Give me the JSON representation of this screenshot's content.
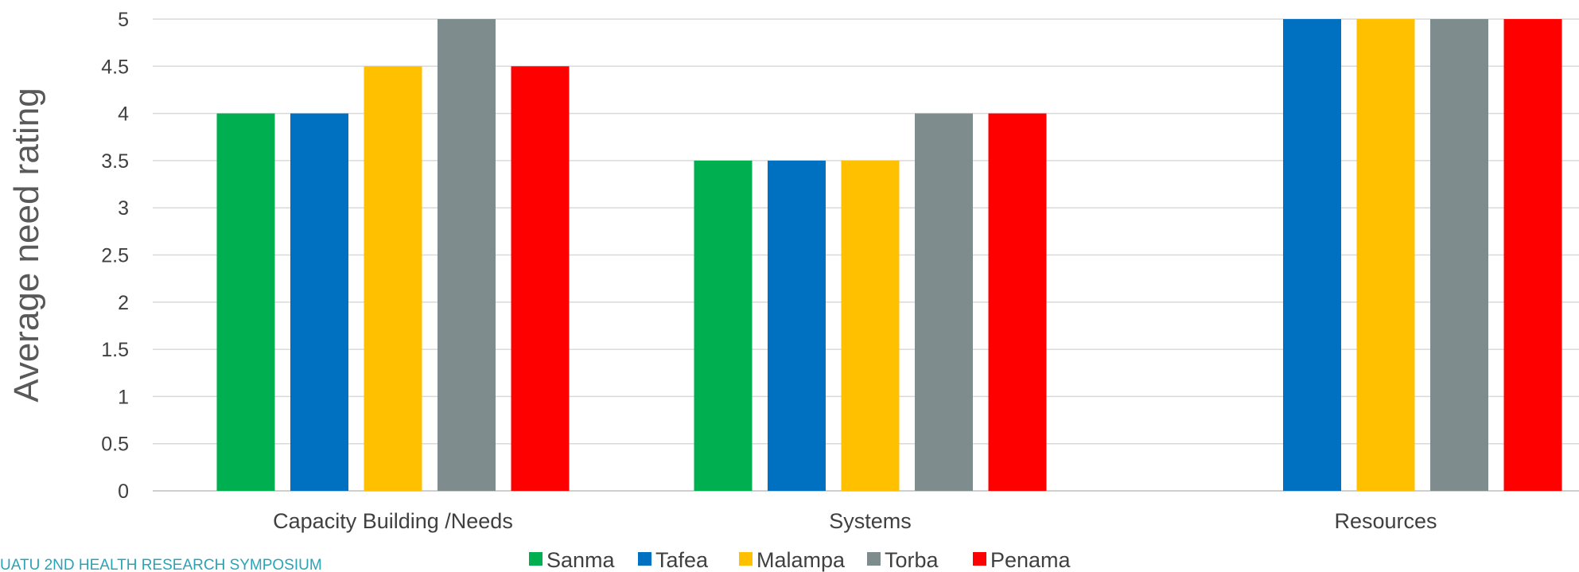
{
  "chart_data": {
    "type": "bar",
    "title": "",
    "xlabel": "",
    "ylabel": "Average need rating",
    "ylim": [
      0,
      5
    ],
    "yticks": [
      0,
      0.5,
      1,
      1.5,
      2,
      2.5,
      3,
      3.5,
      4,
      4.5,
      5
    ],
    "ytick_labels": [
      "0",
      "0.5",
      "1",
      "1.5",
      "2",
      "2.5",
      "3",
      "3.5",
      "4",
      "4.5",
      "5"
    ],
    "grid": true,
    "legend_position": "bottom",
    "categories": [
      "Capacity Building /Needs",
      "Systems",
      "Resources"
    ],
    "series": [
      {
        "name": "Sanma",
        "color": "#00b050",
        "values": [
          4,
          3.5,
          0
        ]
      },
      {
        "name": "Tafea",
        "color": "#0070c0",
        "values": [
          4,
          3.5,
          5
        ]
      },
      {
        "name": "Malampa",
        "color": "#ffc000",
        "values": [
          4.5,
          3.5,
          5
        ]
      },
      {
        "name": "Torba",
        "color": "#7f8c8d",
        "values": [
          5,
          4,
          5
        ]
      },
      {
        "name": "Penama",
        "color": "#ff0000",
        "values": [
          4.5,
          4,
          5
        ]
      }
    ]
  },
  "footer": {
    "text": "UATU 2ND HEALTH RESEARCH SYMPOSIUM"
  }
}
